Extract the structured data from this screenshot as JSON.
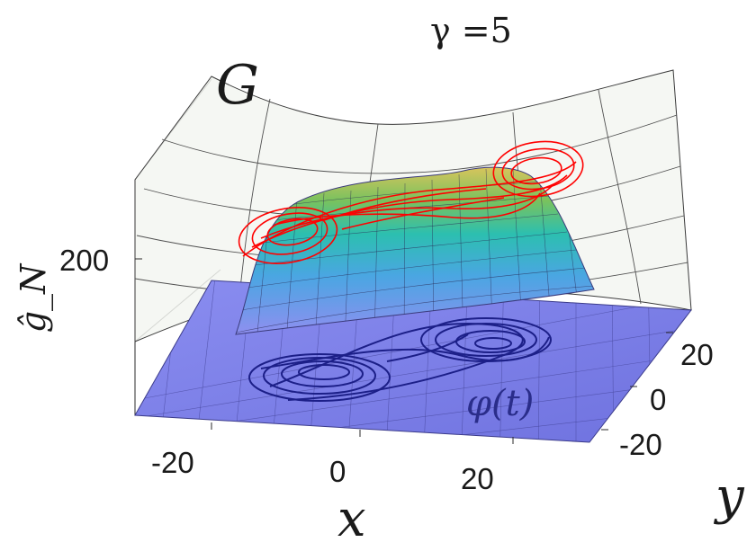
{
  "chart_data": {
    "type": "surface3d",
    "title": "γ =5",
    "surface_label": "G",
    "curve_label": "φ(t)",
    "xlabel": "x",
    "ylabel": "y",
    "zlabel": "ĝ_N",
    "x_ticks": [
      "-20",
      "0",
      "20"
    ],
    "y_ticks": [
      "-20",
      "0",
      "20"
    ],
    "z_ticks": [
      "200"
    ],
    "xlim": [
      -30,
      30
    ],
    "ylim": [
      -30,
      30
    ],
    "grid": true,
    "series": [
      {
        "kind": "surface",
        "colormap": "parula-like",
        "floor_color": "#7b7fe6",
        "peak_color": "#e0c060"
      },
      {
        "kind": "attractor-lifted",
        "color": "#ff0000"
      },
      {
        "kind": "attractor-floor",
        "color": "#1c1f88"
      }
    ]
  }
}
